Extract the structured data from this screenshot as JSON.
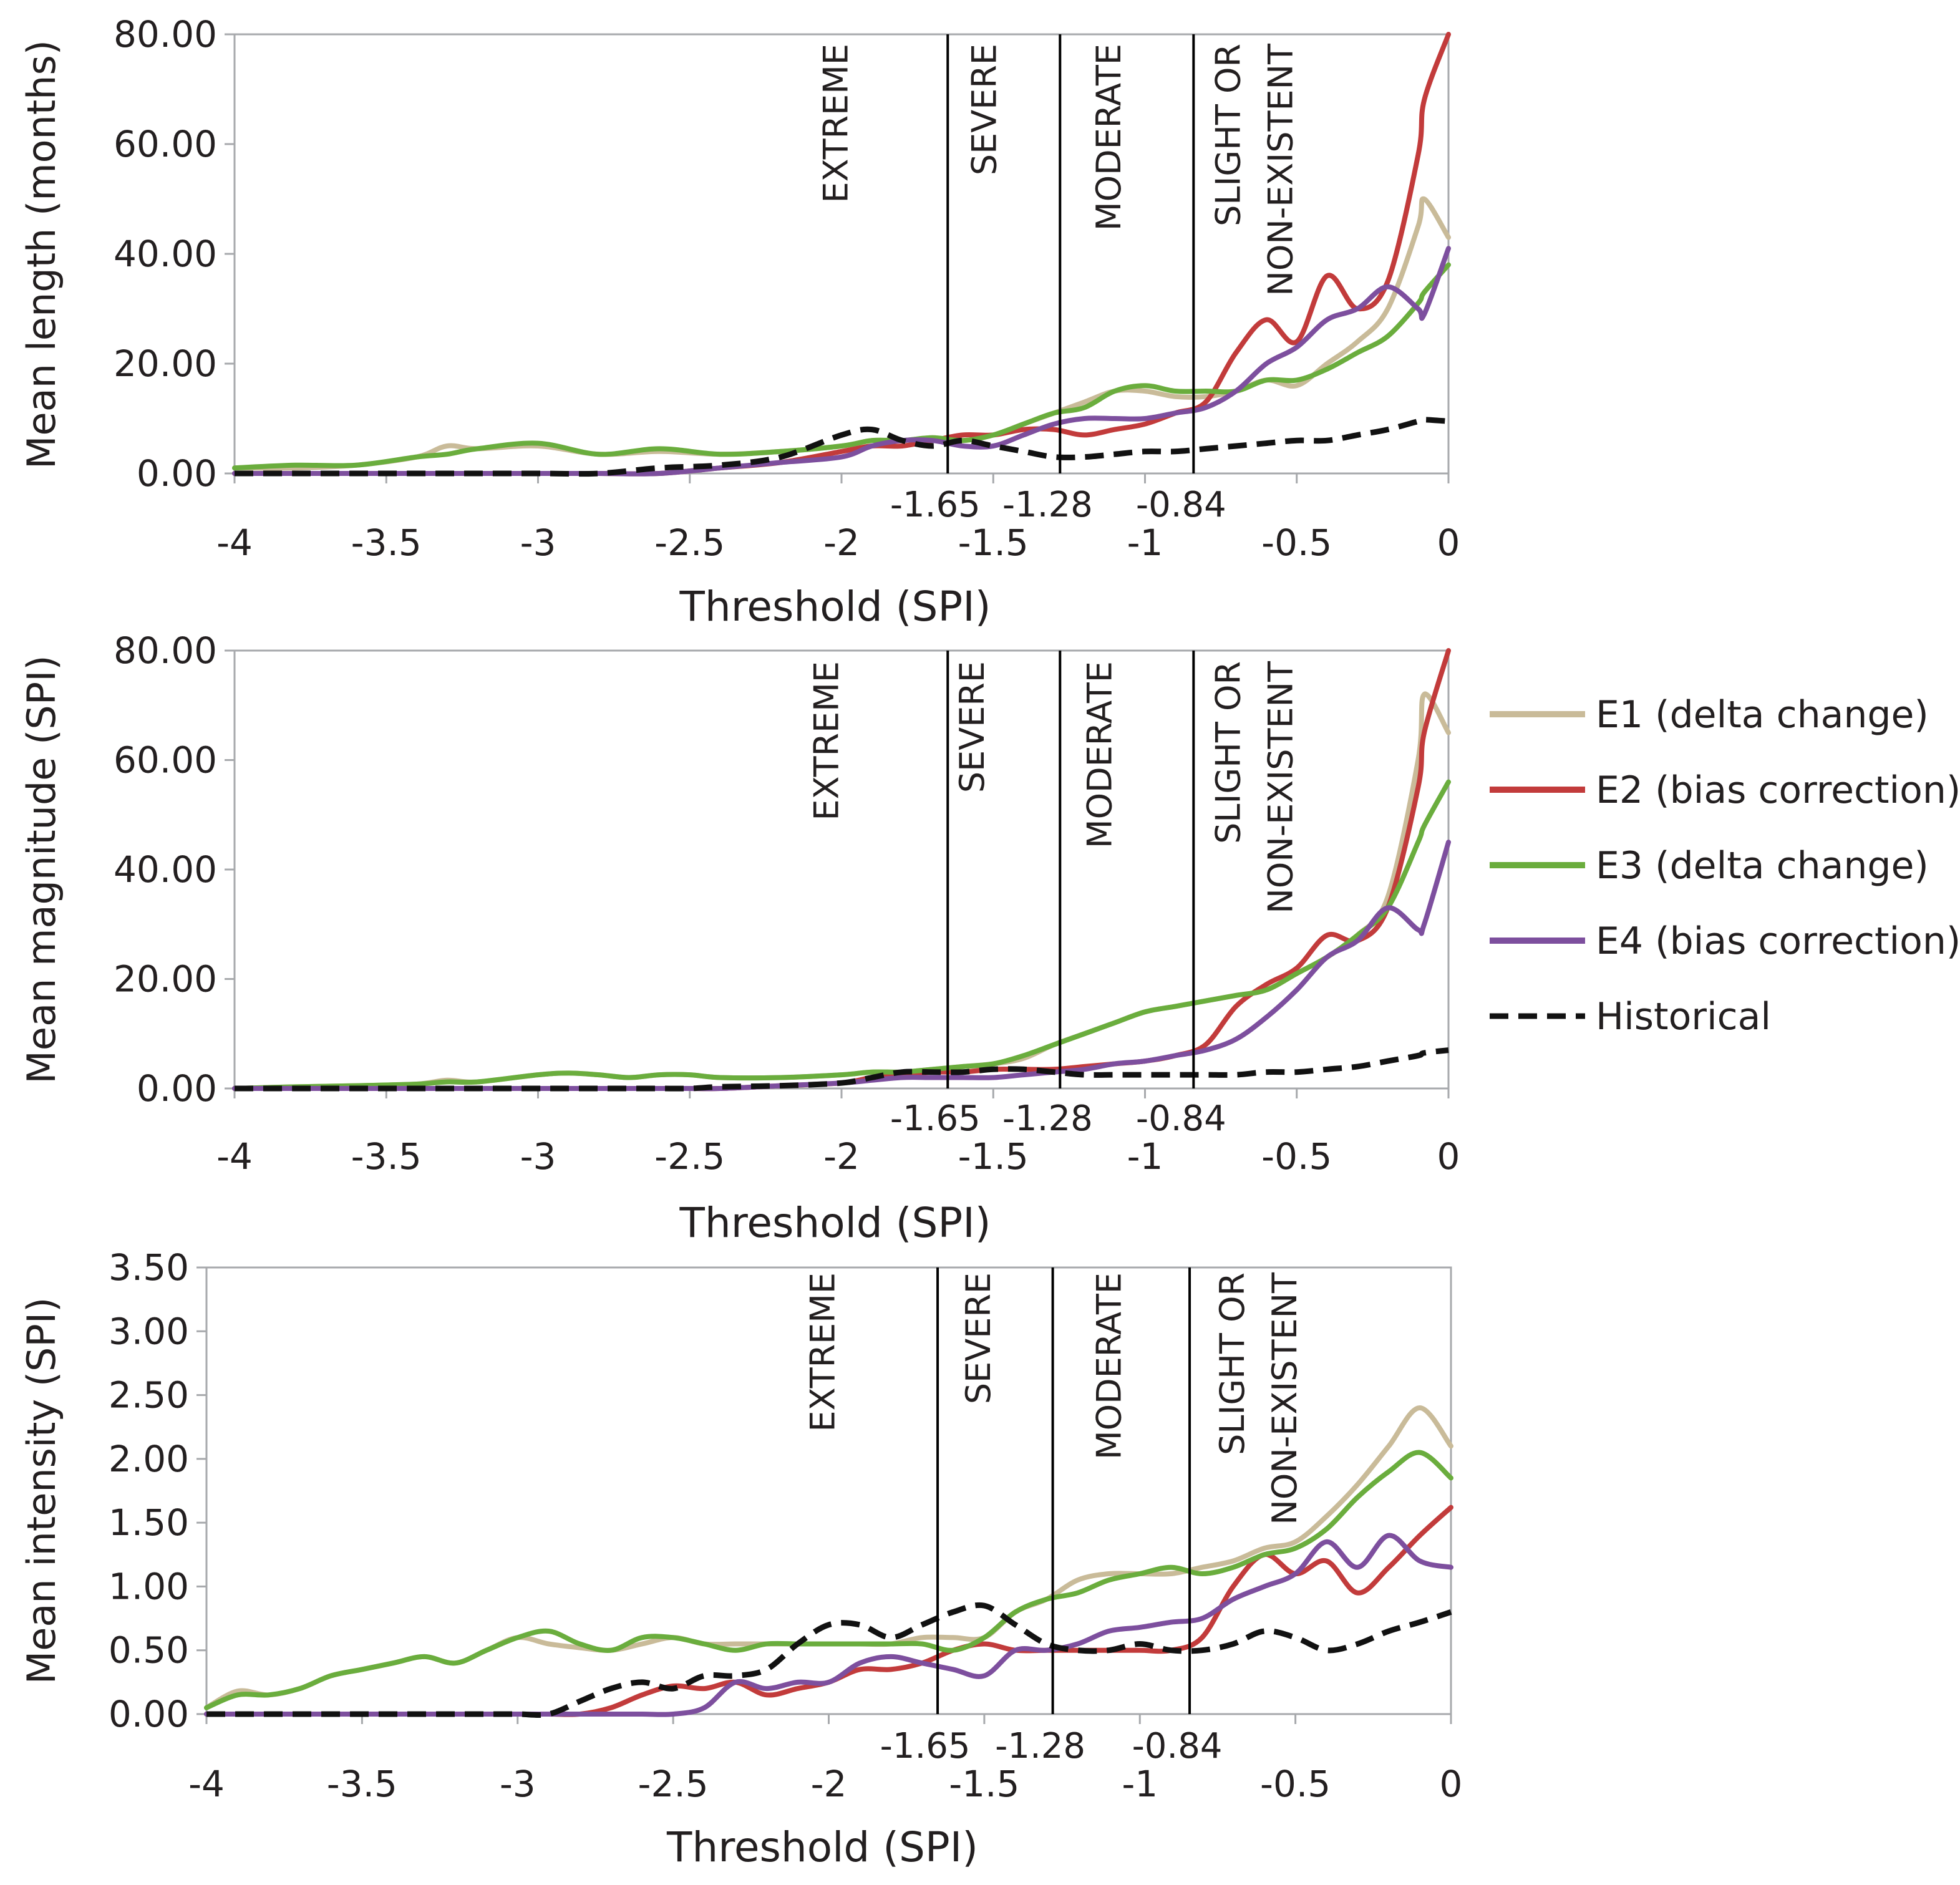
{
  "legend": [
    {
      "key": "E1",
      "label": "E1 (delta change)",
      "color": "#c9bb99",
      "dash": false
    },
    {
      "key": "E2",
      "label": "E2 (bias correction)",
      "color": "#c23b3b",
      "dash": false
    },
    {
      "key": "E3",
      "label": "E3 (delta change)",
      "color": "#6aad3d",
      "dash": false
    },
    {
      "key": "E4",
      "label": "E4 (bias correction)",
      "color": "#7d4f9e",
      "dash": false
    },
    {
      "key": "Hist",
      "label": "Historical",
      "color": "#111111",
      "dash": true
    }
  ],
  "chart_data": [
    {
      "type": "line",
      "title": "",
      "xlabel": "Threshold (SPI)",
      "ylabel": "Mean length (months)",
      "xlim": [
        -4,
        0
      ],
      "ylim": [
        0,
        80
      ],
      "x_ticks": [
        "-4",
        "-3.5",
        "-3",
        "-2.5",
        "-2",
        "-1.5",
        "-1",
        "-0.5",
        "0"
      ],
      "y_ticks": [
        "0.00",
        "20.00",
        "40.00",
        "60.00",
        "80.00"
      ],
      "thresholds": [
        {
          "x": -1.65,
          "label": "-1.65"
        },
        {
          "x": -1.28,
          "label": "-1.28"
        },
        {
          "x": -0.84,
          "label": "-0.84"
        }
      ],
      "zones": [
        {
          "lines": [
            "EXTREME"
          ],
          "x": -2.02
        },
        {
          "lines": [
            "SEVERE"
          ],
          "x": -1.53
        },
        {
          "lines": [
            "MODERATE"
          ],
          "x": -1.12
        },
        {
          "lines": [
            "SLIGHT OR",
            "NON-EXISTENT"
          ],
          "x": -0.64
        }
      ],
      "x": [
        -4,
        -3.8,
        -3.6,
        -3.4,
        -3.3,
        -3.2,
        -3.0,
        -2.8,
        -2.6,
        -2.4,
        -2.2,
        -2.0,
        -1.9,
        -1.8,
        -1.7,
        -1.6,
        -1.5,
        -1.4,
        -1.3,
        -1.2,
        -1.1,
        -1.0,
        -0.9,
        -0.8,
        -0.7,
        -0.6,
        -0.5,
        -0.4,
        -0.3,
        -0.2,
        -0.1,
        -0.08,
        0
      ],
      "series": [
        {
          "name": "E1 (delta change)",
          "values": [
            1,
            1,
            1.5,
            3,
            5,
            4.5,
            5,
            3.5,
            4,
            3.5,
            4,
            5,
            6,
            6,
            6.5,
            6,
            7,
            9,
            11,
            13,
            15,
            15,
            14,
            14,
            15,
            17,
            16,
            20,
            24,
            30,
            45,
            50,
            43
          ]
        },
        {
          "name": "E2 (bias correction)",
          "values": [
            0,
            0,
            0,
            0,
            0,
            0,
            0,
            0,
            0,
            1,
            2,
            4,
            5,
            5,
            6,
            7,
            7,
            8,
            8,
            7,
            8,
            9,
            11,
            13,
            22,
            28,
            24,
            36,
            30,
            35,
            58,
            68,
            80
          ]
        },
        {
          "name": "E3 (delta change)",
          "values": [
            1,
            1.5,
            1.5,
            3,
            3.5,
            4.5,
            5.5,
            3.5,
            4.5,
            3.5,
            4,
            5,
            6,
            6,
            6.5,
            6,
            7,
            9,
            11,
            12,
            15,
            16,
            15,
            15,
            15,
            17,
            17,
            19,
            22,
            25,
            31,
            33,
            38
          ]
        },
        {
          "name": "E4 (bias correction)",
          "values": [
            0,
            0,
            0,
            0,
            0,
            0,
            0,
            0,
            0,
            1,
            2,
            3,
            5,
            6,
            6,
            5,
            5,
            7,
            9,
            10,
            10,
            10,
            11,
            12,
            15,
            20,
            23,
            28,
            30,
            34,
            30,
            29,
            41
          ]
        },
        {
          "name": "Historical",
          "values": [
            0,
            0,
            0,
            0,
            0,
            0,
            0,
            0,
            1,
            1.5,
            3,
            7,
            8,
            6,
            5,
            6,
            5,
            4,
            3,
            3,
            3.5,
            4,
            4,
            4.5,
            5,
            5.5,
            6,
            6,
            7,
            8,
            9.5,
            9.8,
            9.5
          ]
        }
      ]
    },
    {
      "type": "line",
      "title": "",
      "xlabel": "Threshold (SPI)",
      "ylabel": "Mean magnitude (SPI)",
      "xlim": [
        -4,
        0
      ],
      "ylim": [
        0,
        80
      ],
      "x_ticks": [
        "-4",
        "-3.5",
        "-3",
        "-2.5",
        "-2",
        "-1.5",
        "-1",
        "-0.5",
        "0"
      ],
      "y_ticks": [
        "0.00",
        "20.00",
        "40.00",
        "60.00",
        "80.00"
      ],
      "thresholds": [
        {
          "x": -1.65,
          "label": "-1.65"
        },
        {
          "x": -1.28,
          "label": "-1.28"
        },
        {
          "x": -0.84,
          "label": "-0.84"
        }
      ],
      "zones": [
        {
          "lines": [
            "EXTREME"
          ],
          "x": -2.05
        },
        {
          "lines": [
            "SEVERE"
          ],
          "x": -1.57
        },
        {
          "lines": [
            "MODERATE"
          ],
          "x": -1.15
        },
        {
          "lines": [
            "SLIGHT OR",
            "NON-EXISTENT"
          ],
          "x": -0.64
        }
      ],
      "x": [
        -4,
        -3.8,
        -3.6,
        -3.4,
        -3.3,
        -3.2,
        -3.0,
        -2.9,
        -2.8,
        -2.7,
        -2.6,
        -2.5,
        -2.4,
        -2.2,
        -2.0,
        -1.9,
        -1.8,
        -1.7,
        -1.6,
        -1.5,
        -1.4,
        -1.3,
        -1.2,
        -1.1,
        -1.0,
        -0.9,
        -0.8,
        -0.7,
        -0.6,
        -0.5,
        -0.4,
        -0.3,
        -0.2,
        -0.1,
        -0.08,
        0
      ],
      "series": [
        {
          "name": "E1 (delta change)",
          "values": [
            0,
            0.3,
            0.5,
            0.8,
            1.5,
            1.2,
            2.5,
            2.8,
            2.5,
            2,
            2.5,
            2.5,
            2,
            2,
            2.5,
            3,
            3,
            3.5,
            4,
            4.5,
            5.5,
            8,
            10,
            12,
            14,
            15,
            16,
            17,
            18,
            21,
            24,
            28,
            35,
            60,
            72,
            65
          ]
        },
        {
          "name": "E2 (bias correction)",
          "values": [
            0,
            0,
            0,
            0,
            0,
            0,
            0,
            0,
            0,
            0,
            0,
            0,
            0,
            0.5,
            1,
            2,
            2.5,
            3,
            3,
            3.5,
            3.5,
            3.5,
            4,
            4.5,
            5,
            6,
            8,
            15,
            19,
            22,
            28,
            27,
            33,
            55,
            65,
            80
          ]
        },
        {
          "name": "E3 (delta change)",
          "values": [
            0,
            0.3,
            0.5,
            0.8,
            1.2,
            1.2,
            2.5,
            2.8,
            2.5,
            2,
            2.5,
            2.5,
            2,
            2,
            2.5,
            3,
            3,
            3.5,
            4,
            4.5,
            6,
            8,
            10,
            12,
            14,
            15,
            16,
            17,
            18,
            21,
            24,
            28,
            33,
            45,
            48,
            56
          ]
        },
        {
          "name": "E4 (bias correction)",
          "values": [
            0,
            0,
            0,
            0,
            0,
            0,
            0,
            0,
            0,
            0,
            0,
            0,
            0,
            0.5,
            1,
            1.5,
            2,
            2,
            2,
            2,
            2.5,
            3,
            3.5,
            4.5,
            5,
            6,
            7,
            9,
            13,
            18,
            24,
            27,
            33,
            29,
            30,
            45
          ]
        },
        {
          "name": "Historical",
          "values": [
            0,
            0,
            0,
            0,
            0,
            0,
            0,
            0,
            0,
            0,
            0,
            0,
            0.3,
            0.5,
            1,
            2,
            3,
            3,
            3,
            3.5,
            3.5,
            3,
            2.5,
            2.5,
            2.5,
            2.5,
            2.5,
            2.5,
            3,
            3,
            3.5,
            4,
            5,
            6,
            6.5,
            7
          ]
        }
      ]
    },
    {
      "type": "line",
      "title": "",
      "xlabel": "Threshold (SPI)",
      "ylabel": "Mean intensity (SPI)",
      "xlim": [
        -4,
        0
      ],
      "ylim": [
        0,
        3.5
      ],
      "x_ticks": [
        "-4",
        "-3.5",
        "-3",
        "-2.5",
        "-2",
        "-1.5",
        "-1",
        "-0.5",
        "0"
      ],
      "y_ticks": [
        "0.00",
        "0.50",
        "1.00",
        "1.50",
        "2.00",
        "2.50",
        "3.00",
        "3.50"
      ],
      "thresholds": [
        {
          "x": -1.65,
          "label": "-1.65"
        },
        {
          "x": -1.28,
          "label": "-1.28"
        },
        {
          "x": -0.84,
          "label": "-0.84"
        }
      ],
      "zones": [
        {
          "lines": [
            "EXTREME"
          ],
          "x": -2.02
        },
        {
          "lines": [
            "SEVERE"
          ],
          "x": -1.52
        },
        {
          "lines": [
            "MODERATE"
          ],
          "x": -1.1
        },
        {
          "lines": [
            "SLIGHT OR",
            "NON-EXISTENT"
          ],
          "x": -0.62
        }
      ],
      "x": [
        -4,
        -3.9,
        -3.8,
        -3.7,
        -3.6,
        -3.5,
        -3.4,
        -3.3,
        -3.2,
        -3.1,
        -3.0,
        -2.9,
        -2.8,
        -2.7,
        -2.6,
        -2.5,
        -2.4,
        -2.3,
        -2.2,
        -2.1,
        -2.0,
        -1.9,
        -1.8,
        -1.7,
        -1.6,
        -1.5,
        -1.4,
        -1.3,
        -1.2,
        -1.1,
        -1.0,
        -0.9,
        -0.8,
        -0.7,
        -0.6,
        -0.5,
        -0.4,
        -0.3,
        -0.2,
        -0.1,
        0
      ],
      "series": [
        {
          "name": "E1 (delta change)",
          "values": [
            0.05,
            0.18,
            0.15,
            0.2,
            0.3,
            0.35,
            0.4,
            0.45,
            0.4,
            0.5,
            0.6,
            0.55,
            0.52,
            0.5,
            0.55,
            0.6,
            0.55,
            0.55,
            0.55,
            0.55,
            0.55,
            0.55,
            0.55,
            0.6,
            0.6,
            0.6,
            0.8,
            0.9,
            1.05,
            1.1,
            1.1,
            1.1,
            1.15,
            1.2,
            1.3,
            1.35,
            1.55,
            1.8,
            2.1,
            2.4,
            2.1
          ]
        },
        {
          "name": "E2 (bias correction)",
          "values": [
            0,
            0,
            0,
            0,
            0,
            0,
            0,
            0,
            0,
            0,
            0,
            0,
            0,
            0.05,
            0.15,
            0.22,
            0.2,
            0.25,
            0.15,
            0.2,
            0.25,
            0.35,
            0.35,
            0.4,
            0.5,
            0.55,
            0.5,
            0.5,
            0.5,
            0.5,
            0.5,
            0.5,
            0.6,
            1.0,
            1.25,
            1.1,
            1.2,
            0.95,
            1.15,
            1.4,
            1.62
          ]
        },
        {
          "name": "E3 (delta change)",
          "values": [
            0.05,
            0.15,
            0.15,
            0.2,
            0.3,
            0.35,
            0.4,
            0.45,
            0.4,
            0.5,
            0.6,
            0.65,
            0.55,
            0.5,
            0.6,
            0.6,
            0.55,
            0.5,
            0.55,
            0.55,
            0.55,
            0.55,
            0.55,
            0.55,
            0.5,
            0.6,
            0.8,
            0.9,
            0.95,
            1.05,
            1.1,
            1.15,
            1.1,
            1.15,
            1.25,
            1.3,
            1.45,
            1.7,
            1.9,
            2.05,
            1.85
          ]
        },
        {
          "name": "E4 (bias correction)",
          "values": [
            0,
            0,
            0,
            0,
            0,
            0,
            0,
            0,
            0,
            0,
            0,
            0,
            0,
            0,
            0,
            0,
            0.05,
            0.25,
            0.2,
            0.25,
            0.25,
            0.4,
            0.45,
            0.4,
            0.35,
            0.3,
            0.5,
            0.5,
            0.55,
            0.65,
            0.68,
            0.72,
            0.75,
            0.9,
            1.0,
            1.1,
            1.35,
            1.15,
            1.4,
            1.2,
            1.15
          ]
        },
        {
          "name": "Historical",
          "values": [
            0,
            0,
            0,
            0,
            0,
            0,
            0,
            0,
            0,
            0,
            0,
            0,
            0.1,
            0.2,
            0.25,
            0.2,
            0.3,
            0.3,
            0.35,
            0.55,
            0.7,
            0.7,
            0.6,
            0.7,
            0.8,
            0.85,
            0.7,
            0.55,
            0.5,
            0.5,
            0.55,
            0.5,
            0.5,
            0.55,
            0.65,
            0.6,
            0.5,
            0.55,
            0.65,
            0.72,
            0.8
          ]
        }
      ]
    }
  ]
}
